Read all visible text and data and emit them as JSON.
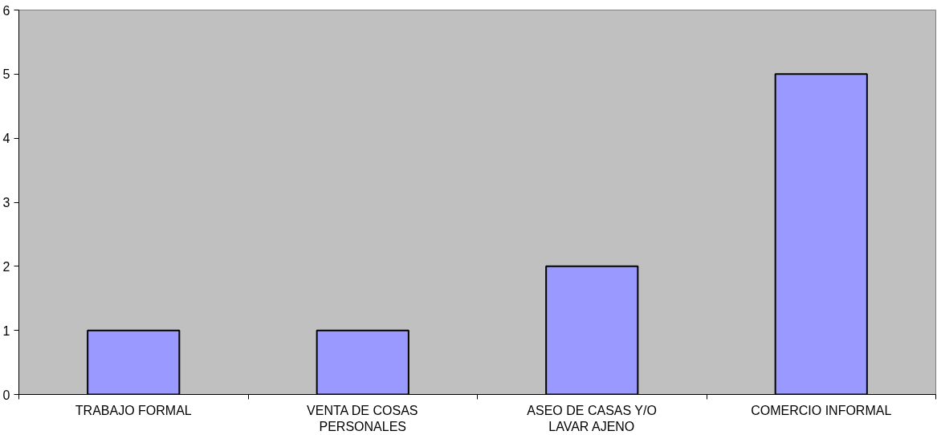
{
  "chart_data": {
    "type": "bar",
    "categories": [
      "TRABAJO FORMAL",
      "VENTA DE COSAS PERSONALES",
      "ASEO DE CASAS Y/O LAVAR AJENO",
      "COMERCIO INFORMAL"
    ],
    "values": [
      1,
      1,
      2,
      5
    ],
    "color": "#9999ff",
    "ylim": [
      0,
      6
    ],
    "yticks": [
      0,
      1,
      2,
      3,
      4,
      5,
      6
    ],
    "grid": false
  }
}
